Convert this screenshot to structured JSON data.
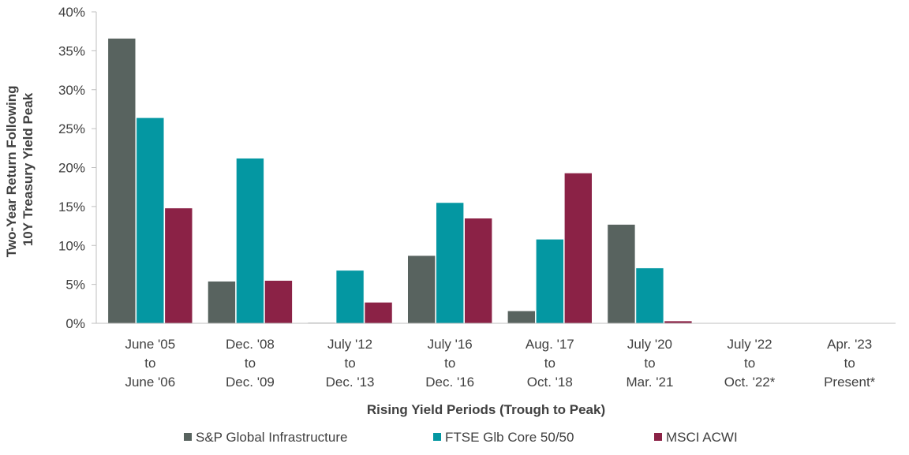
{
  "chart_data": {
    "type": "bar",
    "ylabel": [
      "Two-Year Return Following",
      "10Y Treasury Yield Peak"
    ],
    "xlabel": "Rising Yield Periods (Trough to Peak)",
    "ylim": [
      0,
      40
    ],
    "yticks": [
      "0%",
      "5%",
      "10%",
      "15%",
      "20%",
      "25%",
      "30%",
      "35%",
      "40%"
    ],
    "categories": [
      [
        "June '05",
        "to",
        "June '06"
      ],
      [
        "Dec. '08",
        "to",
        "Dec. '09"
      ],
      [
        "July '12",
        "to",
        "Dec. '13"
      ],
      [
        "July '16",
        "to",
        "Dec. '16"
      ],
      [
        "Aug. '17",
        "to",
        "Oct. '18"
      ],
      [
        "July '20",
        "to",
        "Mar. '21"
      ],
      [
        "July '22",
        "to",
        "Oct. '22*"
      ],
      [
        "Apr. '23",
        "to",
        "Present*"
      ]
    ],
    "series": [
      {
        "name": "S&P Global Infrastructure",
        "color": "#58635f",
        "values": [
          36.6,
          5.4,
          0.1,
          8.7,
          1.6,
          12.7,
          0,
          0
        ]
      },
      {
        "name": "FTSE Glb Core 50/50",
        "color": "#0497a2",
        "values": [
          26.4,
          21.2,
          6.8,
          15.5,
          10.8,
          7.1,
          0,
          0
        ]
      },
      {
        "name": "MSCI ACWI",
        "color": "#8b2246",
        "values": [
          14.8,
          5.5,
          2.7,
          13.5,
          19.3,
          0.3,
          0,
          0
        ]
      }
    ],
    "grid": false,
    "legend": "bottom"
  }
}
